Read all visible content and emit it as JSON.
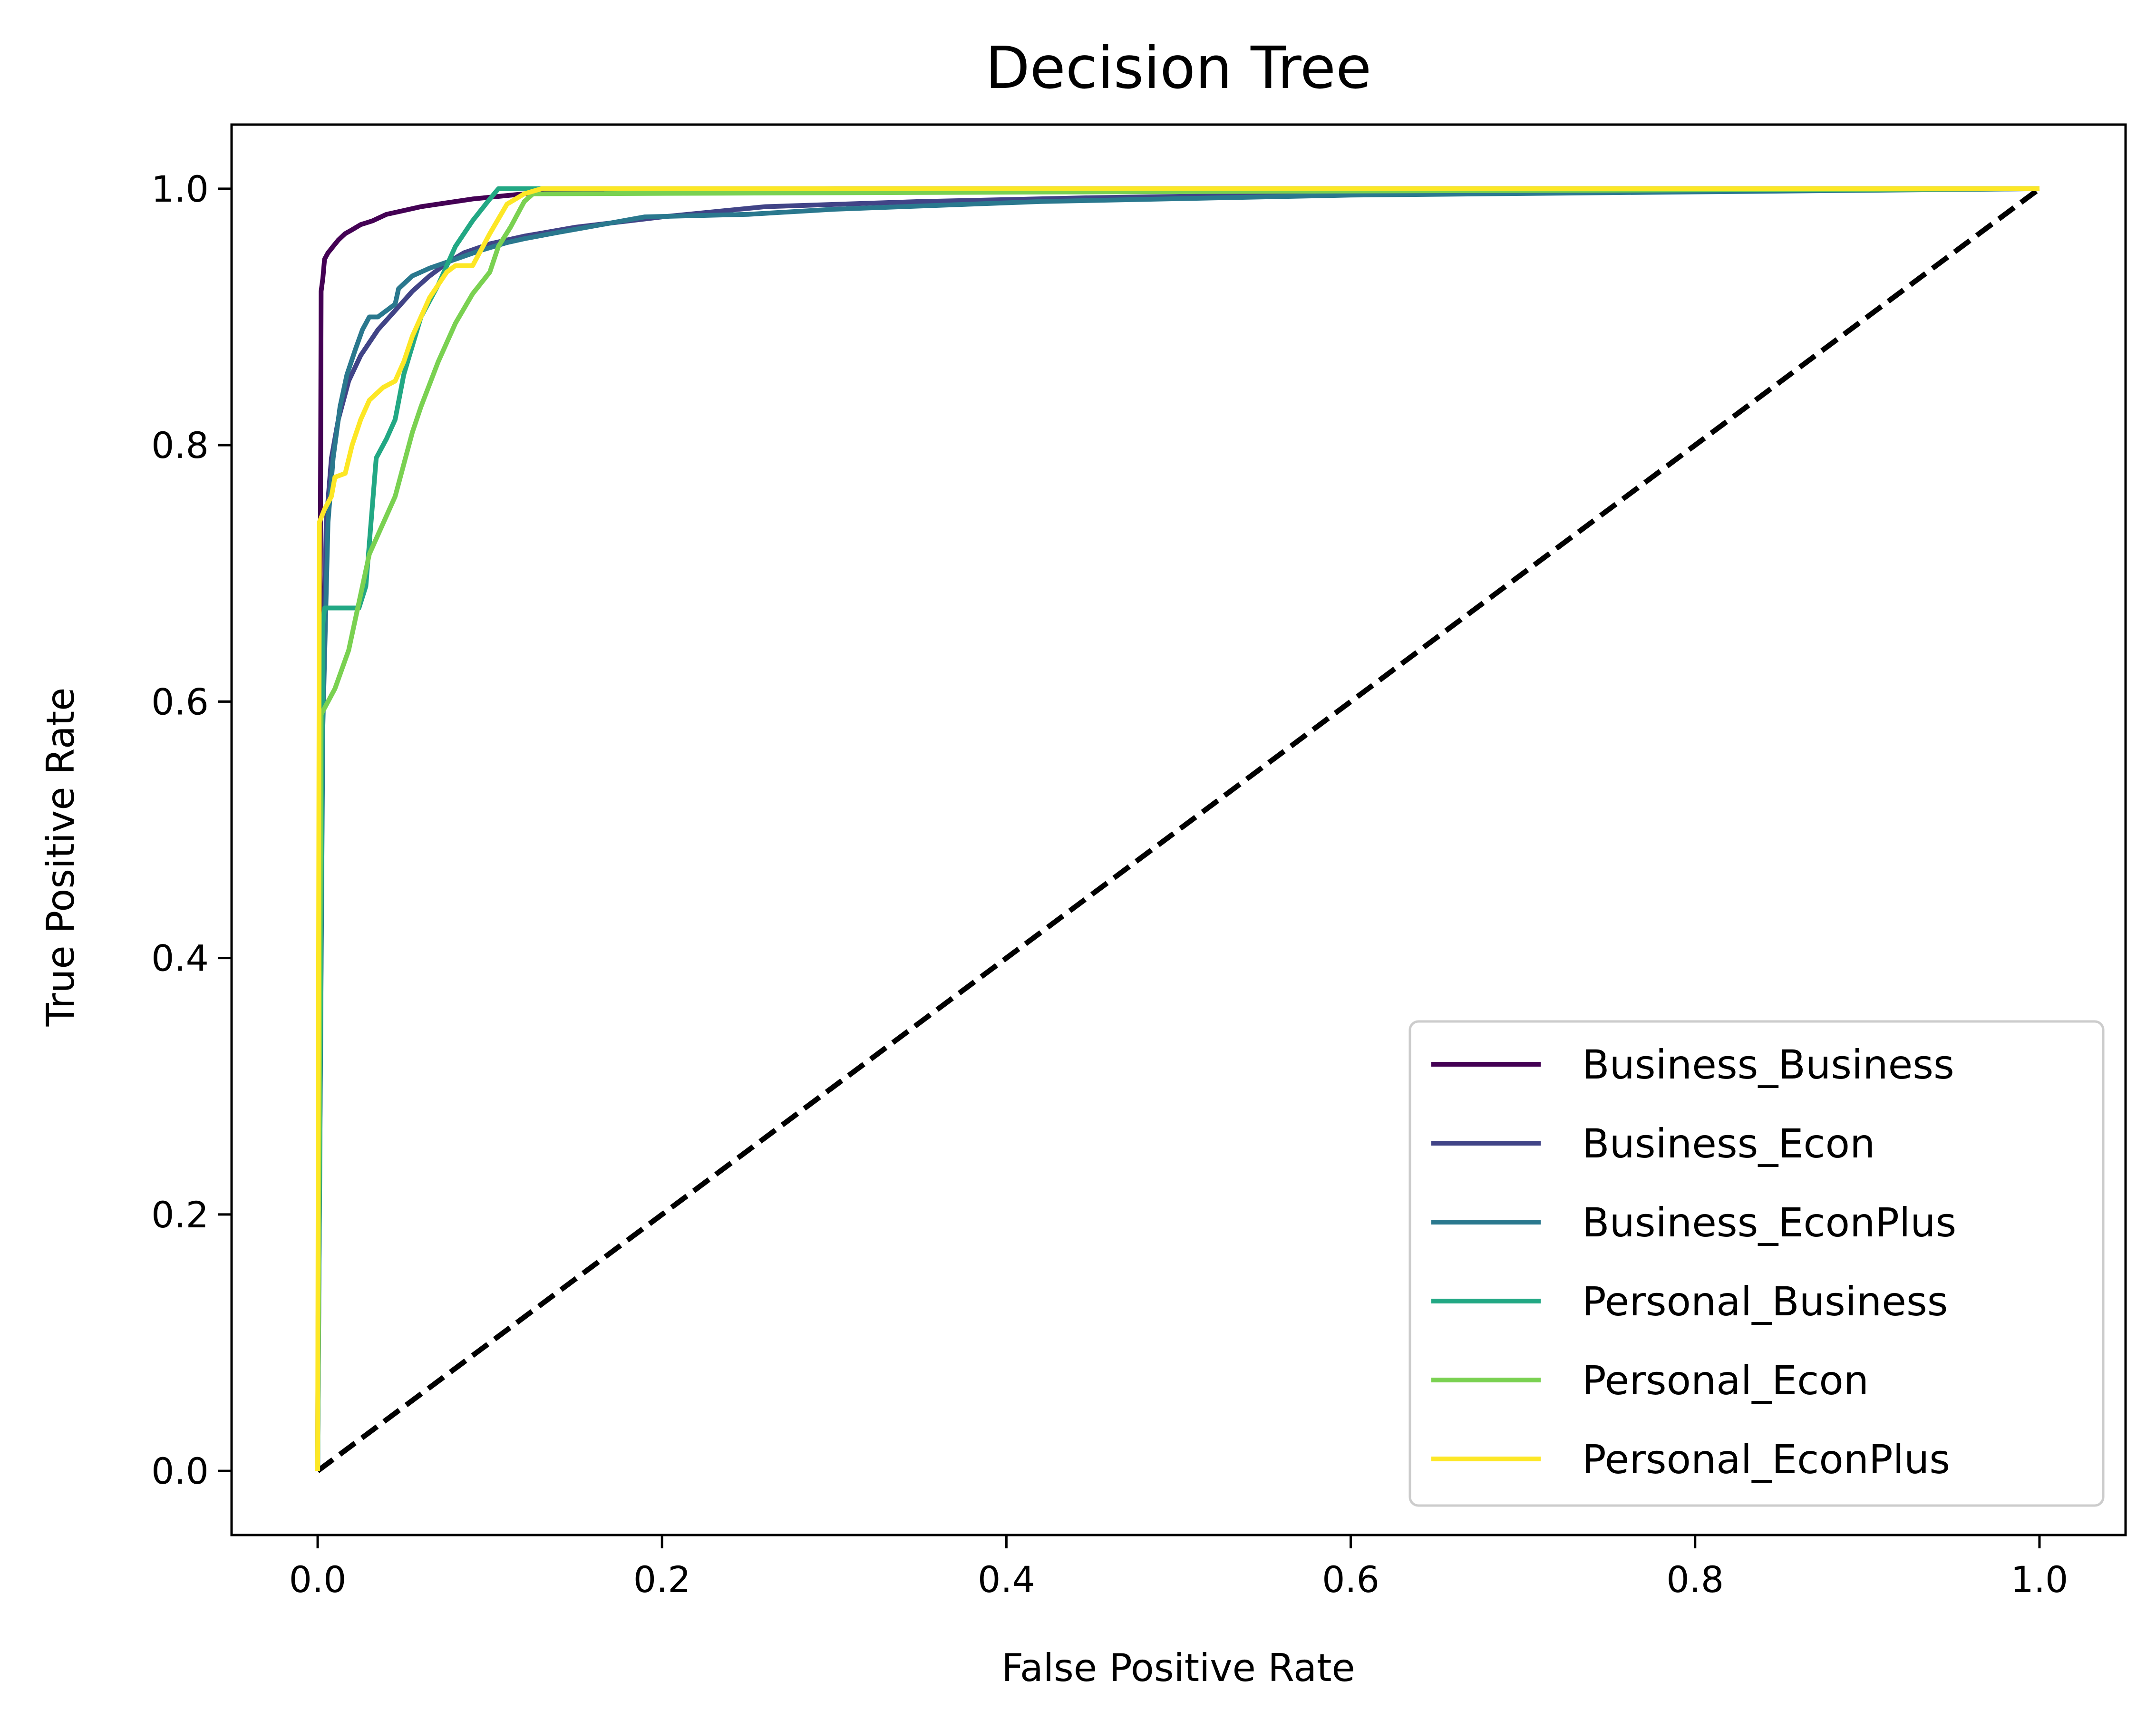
{
  "chart_data": {
    "type": "line",
    "title": "Decision Tree",
    "xlabel": "False Positive Rate",
    "ylabel": "True Positive Rate",
    "xlim": [
      -0.05,
      1.05
    ],
    "ylim": [
      -0.05,
      1.05
    ],
    "x_ticks": [
      "0.0",
      "0.2",
      "0.4",
      "0.6",
      "0.8",
      "1.0"
    ],
    "y_ticks": [
      "0.0",
      "0.2",
      "0.4",
      "0.6",
      "0.8",
      "1.0"
    ],
    "grid": false,
    "legend_position": "bottom-right",
    "series": [
      {
        "name": "Business_Business",
        "color": "#440154",
        "x": [
          0,
          0.002,
          0.003,
          0.004,
          0.006,
          0.009,
          0.012,
          0.016,
          0.02,
          0.025,
          0.032,
          0.04,
          0.05,
          0.06,
          0.075,
          0.09,
          0.105,
          0.12,
          0.15,
          0.3,
          1.0
        ],
        "y": [
          0,
          0.92,
          0.93,
          0.945,
          0.95,
          0.955,
          0.96,
          0.965,
          0.968,
          0.972,
          0.975,
          0.98,
          0.983,
          0.986,
          0.989,
          0.992,
          0.994,
          0.996,
          0.998,
          1.0,
          1.0
        ]
      },
      {
        "name": "Business_Econ",
        "color": "#414487",
        "x": [
          0,
          0.003,
          0.005,
          0.008,
          0.012,
          0.018,
          0.025,
          0.035,
          0.045,
          0.055,
          0.065,
          0.075,
          0.085,
          0.1,
          0.12,
          0.15,
          0.2,
          0.26,
          0.35,
          0.45,
          0.6,
          1.0
        ],
        "y": [
          0,
          0.6,
          0.74,
          0.79,
          0.82,
          0.85,
          0.87,
          0.89,
          0.905,
          0.92,
          0.932,
          0.942,
          0.95,
          0.957,
          0.963,
          0.97,
          0.978,
          0.986,
          0.99,
          0.993,
          0.996,
          1.0
        ]
      },
      {
        "name": "Business_EconPlus",
        "color": "#2a788e",
        "x": [
          0,
          0.003,
          0.006,
          0.009,
          0.013,
          0.017,
          0.022,
          0.026,
          0.03,
          0.035,
          0.04,
          0.045,
          0.047,
          0.055,
          0.065,
          0.08,
          0.095,
          0.11,
          0.12,
          0.14,
          0.19,
          0.25,
          0.3,
          0.42,
          0.6,
          1.0
        ],
        "y": [
          0,
          0.58,
          0.74,
          0.79,
          0.83,
          0.855,
          0.875,
          0.89,
          0.9,
          0.9,
          0.905,
          0.91,
          0.922,
          0.932,
          0.938,
          0.945,
          0.952,
          0.958,
          0.961,
          0.966,
          0.978,
          0.98,
          0.984,
          0.99,
          0.995,
          1.0
        ]
      },
      {
        "name": "Personal_Business",
        "color": "#22a884",
        "x": [
          0,
          0.003,
          0.004,
          0.012,
          0.024,
          0.028,
          0.034,
          0.04,
          0.045,
          0.05,
          0.06,
          0.07,
          0.08,
          0.09,
          0.1,
          0.105,
          0.12,
          1.0
        ],
        "y": [
          0,
          0.66,
          0.673,
          0.673,
          0.673,
          0.69,
          0.79,
          0.805,
          0.82,
          0.855,
          0.9,
          0.925,
          0.955,
          0.975,
          0.992,
          1.0,
          1.0,
          1.0
        ]
      },
      {
        "name": "Personal_Econ",
        "color": "#7ad151",
        "x": [
          0,
          0.002,
          0.006,
          0.01,
          0.014,
          0.018,
          0.022,
          0.026,
          0.03,
          0.035,
          0.04,
          0.045,
          0.05,
          0.055,
          0.06,
          0.07,
          0.08,
          0.09,
          0.1,
          0.105,
          0.112,
          0.12,
          0.125,
          1.0
        ],
        "y": [
          0,
          0.59,
          0.6,
          0.61,
          0.625,
          0.64,
          0.665,
          0.69,
          0.715,
          0.73,
          0.745,
          0.76,
          0.785,
          0.81,
          0.83,
          0.865,
          0.895,
          0.918,
          0.935,
          0.955,
          0.97,
          0.99,
          0.996,
          1.0
        ]
      },
      {
        "name": "Personal_EconPlus",
        "color": "#fde725",
        "x": [
          0,
          0.001,
          0.004,
          0.008,
          0.01,
          0.016,
          0.02,
          0.025,
          0.03,
          0.038,
          0.045,
          0.05,
          0.055,
          0.06,
          0.065,
          0.07,
          0.075,
          0.08,
          0.09,
          0.1,
          0.11,
          0.12,
          0.13,
          1.0
        ],
        "y": [
          0,
          0.74,
          0.75,
          0.76,
          0.775,
          0.778,
          0.8,
          0.82,
          0.835,
          0.845,
          0.85,
          0.865,
          0.885,
          0.9,
          0.915,
          0.925,
          0.935,
          0.94,
          0.94,
          0.965,
          0.988,
          0.996,
          1.0,
          1.0
        ]
      }
    ],
    "reference_line": {
      "color": "#000000",
      "style": "dashed",
      "x": [
        0,
        1
      ],
      "y": [
        0,
        1
      ]
    }
  }
}
